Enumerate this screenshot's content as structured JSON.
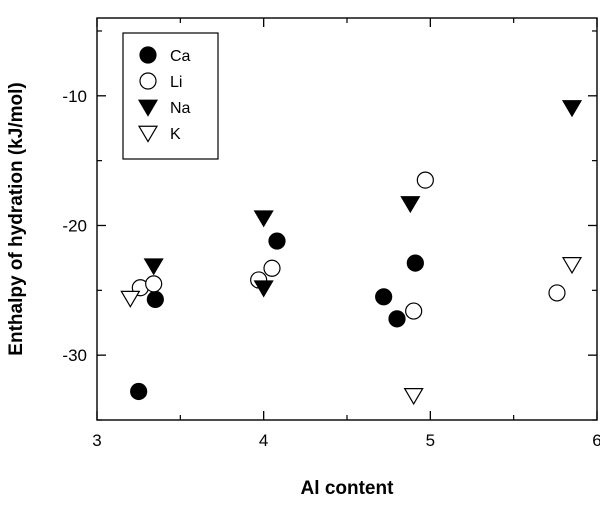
{
  "chart_data": {
    "type": "scatter",
    "xlabel": "Al content",
    "ylabel": "Enthalpy of hydration (kJ/mol)",
    "xlim": [
      3,
      6
    ],
    "ylim": [
      -35,
      -4
    ],
    "xticks": [
      3,
      4,
      5,
      6
    ],
    "yticks": [
      -30,
      -20,
      -10
    ],
    "grid": false,
    "legend_position": "top-left",
    "series": [
      {
        "name": "Ca",
        "marker": "circle-filled",
        "color": "#000000",
        "points": [
          [
            3.25,
            -32.8
          ],
          [
            3.35,
            -25.7
          ],
          [
            4.08,
            -21.2
          ],
          [
            4.72,
            -25.5
          ],
          [
            4.8,
            -27.2
          ],
          [
            4.91,
            -22.9
          ]
        ]
      },
      {
        "name": "Li",
        "marker": "circle-open",
        "color": "#000000",
        "points": [
          [
            3.26,
            -24.8
          ],
          [
            3.34,
            -24.5
          ],
          [
            3.97,
            -24.2
          ],
          [
            4.05,
            -23.3
          ],
          [
            4.9,
            -26.6
          ],
          [
            4.97,
            -16.5
          ],
          [
            5.76,
            -25.2
          ]
        ]
      },
      {
        "name": "Na",
        "marker": "triangle-down-filled",
        "color": "#000000",
        "points": [
          [
            3.34,
            -23.1
          ],
          [
            4.0,
            -19.4
          ],
          [
            4.0,
            -24.8
          ],
          [
            4.88,
            -18.3
          ],
          [
            5.85,
            -10.9
          ]
        ]
      },
      {
        "name": "K",
        "marker": "triangle-down-open",
        "color": "#000000",
        "points": [
          [
            3.2,
            -25.6
          ],
          [
            4.9,
            -33.1
          ],
          [
            5.85,
            -23.0
          ]
        ]
      }
    ]
  }
}
